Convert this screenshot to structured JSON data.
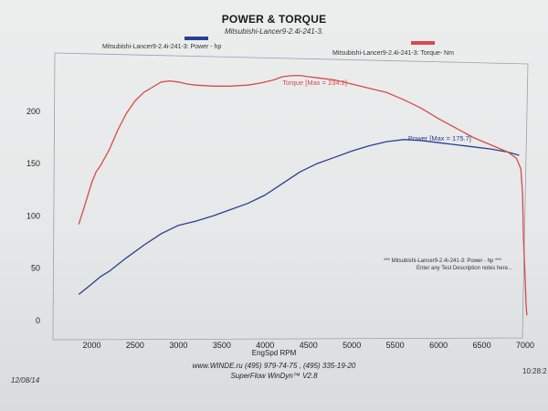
{
  "header": {
    "title": "POWER & TORQUE",
    "subtitle": "Mitsubishi-Lancer9-2.4i-241-3."
  },
  "legend": {
    "power_label": "Mitsubishi-Lancer9-2.4i-241-3: Power - hp",
    "torque_label": "Mitsubishi-Lancer9-2.4i-241-3: Torque- Nm"
  },
  "notes": {
    "line1": "*** Mitsubishi-Lancer9-2.4i-241-3: Power - hp ***",
    "line2": "Enter any Test Description notes here..."
  },
  "footer": {
    "line1": "www.WINDE.ru (495) 979-74-75 , (495) 335-19-20",
    "line2": "SuperFlow WinDyn™ V2.8",
    "date": "12/08/14",
    "time": "10:28:2"
  },
  "colors": {
    "power": "#2a3f8f",
    "torque": "#d84a4a"
  },
  "chart_data": {
    "type": "line",
    "title": "POWER & TORQUE",
    "subtitle": "Mitsubishi-Lancer9-2.4i-241-3.",
    "xlabel": "EngSpd RPM",
    "ylabel": "",
    "xlim": [
      1700,
      7200
    ],
    "ylim": [
      0,
      240
    ],
    "x_ticks": [
      "2000",
      "2500",
      "3000",
      "3500",
      "4000",
      "4500",
      "5000",
      "5500",
      "6000",
      "6500",
      "7000"
    ],
    "y_ticks": [
      "0",
      "50",
      "100",
      "150",
      "200"
    ],
    "grid": false,
    "legend_position": "top",
    "annotations": [
      {
        "series": "torque",
        "text": "Torque [Max = 234.2]",
        "x": 4200,
        "y": 225
      },
      {
        "series": "power",
        "text": "Power [Max = 175.7]",
        "x": 5650,
        "y": 172
      }
    ],
    "series": [
      {
        "key": "power",
        "name": "Mitsubishi-Lancer9-2.4i-241-3: Power - hp",
        "x": [
          1850,
          2000,
          2100,
          2200,
          2400,
          2600,
          2800,
          3000,
          3200,
          3400,
          3600,
          3800,
          4000,
          4200,
          4400,
          4600,
          4800,
          5000,
          5200,
          5400,
          5600,
          5800,
          6000,
          6200,
          6400,
          6600,
          6800,
          6930
        ],
        "values": [
          25,
          35,
          42,
          47,
          60,
          72,
          83,
          91,
          95,
          100,
          106,
          112,
          120,
          131,
          142,
          150,
          156,
          162,
          167,
          171,
          173,
          172,
          170,
          168,
          166,
          164,
          161,
          158
        ]
      },
      {
        "key": "torque",
        "name": "Mitsubishi-Lancer9-2.4i-241-3: Torque- Nm",
        "x": [
          1850,
          1900,
          2000,
          2050,
          2100,
          2200,
          2300,
          2400,
          2500,
          2600,
          2700,
          2800,
          2900,
          3000,
          3100,
          3200,
          3400,
          3600,
          3800,
          3950,
          4100,
          4200,
          4300,
          4400,
          4500,
          4600,
          4700,
          4800,
          5000,
          5200,
          5400,
          5600,
          5800,
          6000,
          6200,
          6400,
          6600,
          6800,
          6900,
          6950,
          6970,
          6980,
          7000,
          7010,
          7020
        ],
        "values": [
          92,
          105,
          132,
          142,
          148,
          163,
          182,
          198,
          210,
          218,
          223,
          228,
          229,
          228,
          226,
          225,
          224,
          224,
          225,
          227,
          230,
          233,
          234,
          234.2,
          233,
          232,
          231,
          230,
          226,
          222,
          218,
          211,
          203,
          193,
          184,
          175,
          168,
          161,
          155,
          145,
          120,
          80,
          40,
          15,
          5
        ]
      }
    ]
  }
}
